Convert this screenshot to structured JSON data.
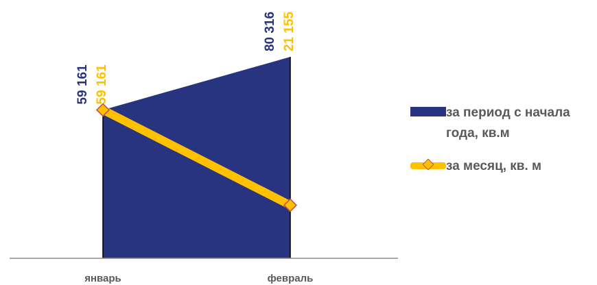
{
  "chart_data": {
    "type": "area",
    "categories": [
      "январь",
      "февраль"
    ],
    "series": [
      {
        "name": "за период с начала года, кв.м",
        "type": "area",
        "values": [
          59161,
          80316
        ],
        "labels": [
          "59 161",
          "80 316"
        ],
        "color": "#293481"
      },
      {
        "name": "за месяц, кв. м",
        "type": "line",
        "values": [
          59161,
          21155
        ],
        "labels": [
          "59 161",
          "21 155"
        ],
        "color": "#FFC000",
        "marker_color": "#C0504D"
      }
    ],
    "ylim": [
      0,
      103000
    ],
    "grid": false,
    "legend_position": "right"
  }
}
